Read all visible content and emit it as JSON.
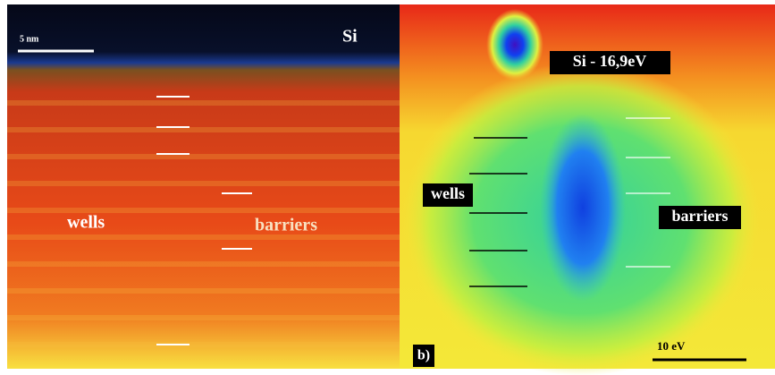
{
  "panel_a": {
    "scale_bar": "5 nm",
    "si": "Si",
    "wells": "wells",
    "barriers": "barriers"
  },
  "panel_b": {
    "tag": "b)",
    "si": "Si - 16,9eV",
    "wells": "wells",
    "barriers": "barriers",
    "scale_bar": "10 eV"
  }
}
